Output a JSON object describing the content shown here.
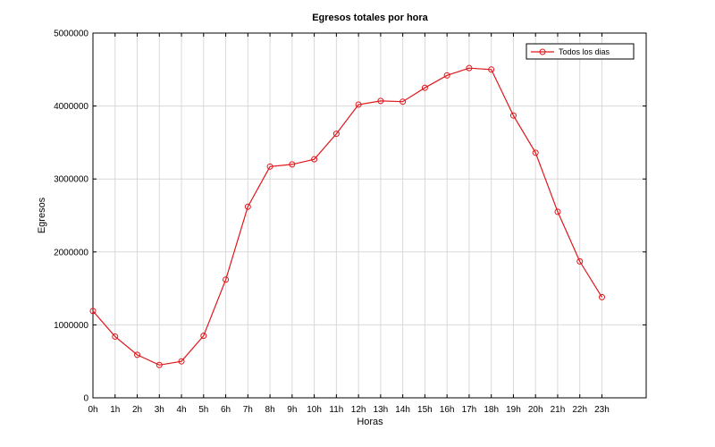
{
  "chart_data": {
    "type": "line",
    "title": "Egresos totales por hora",
    "xlabel": "Horas",
    "ylabel": "Egresos",
    "categories": [
      "0h",
      "1h",
      "2h",
      "3h",
      "4h",
      "5h",
      "6h",
      "7h",
      "8h",
      "9h",
      "10h",
      "11h",
      "12h",
      "13h",
      "14h",
      "15h",
      "16h",
      "17h",
      "18h",
      "19h",
      "20h",
      "21h",
      "22h",
      "23h"
    ],
    "ylim": [
      0,
      5000000
    ],
    "xlim": [
      0,
      25
    ],
    "yticks": [
      0,
      1000000,
      2000000,
      3000000,
      4000000,
      5000000
    ],
    "ytick_labels": [
      "0",
      "1000000",
      "2000000",
      "3000000",
      "4000000",
      "5000000"
    ],
    "grid": true,
    "legend_position": "top-right",
    "series": [
      {
        "name": "Todos los dias",
        "color": "#e0161b",
        "marker": "circle",
        "values": [
          1190000,
          840000,
          590000,
          450000,
          500000,
          850000,
          1620000,
          2620000,
          3170000,
          3200000,
          3270000,
          3620000,
          4020000,
          4070000,
          4060000,
          4250000,
          4420000,
          4520000,
          4500000,
          3870000,
          3360000,
          2550000,
          1870000,
          1380000
        ]
      }
    ]
  }
}
